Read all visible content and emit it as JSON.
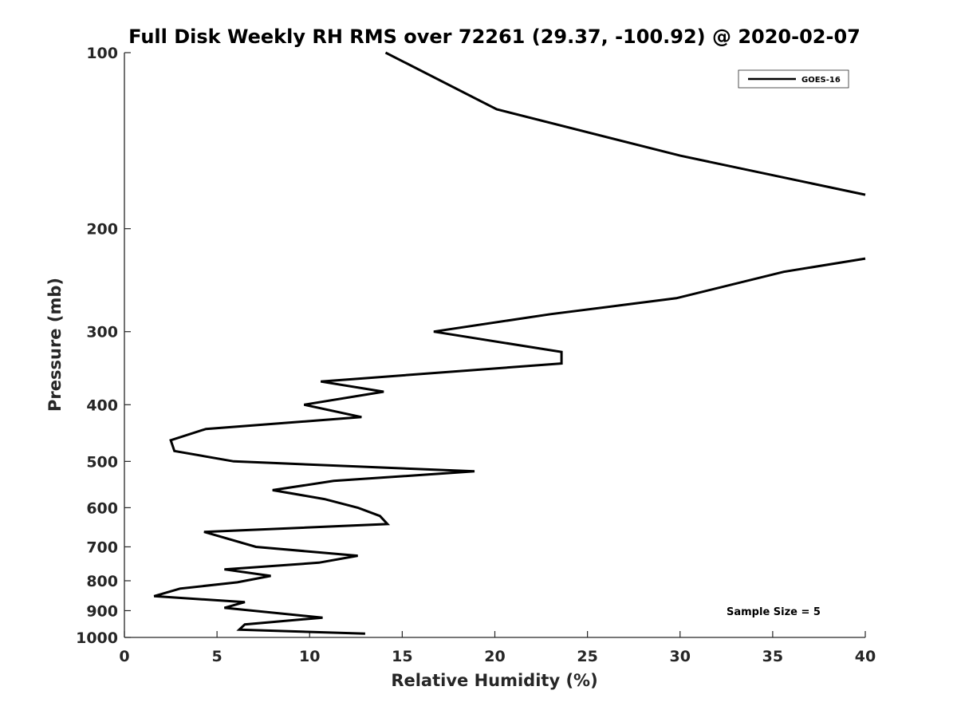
{
  "chart_data": {
    "type": "line",
    "title": "Full Disk Weekly RH RMS over 72261 (29.37, -100.92) @ 2020-02-07",
    "xlabel": "Relative Humidity (%)",
    "ylabel": "Pressure (mb)",
    "xlim": [
      0,
      40
    ],
    "ylim": [
      100,
      1000
    ],
    "y_scale": "log",
    "y_reversed": true,
    "x_ticks": [
      0,
      5,
      10,
      15,
      20,
      25,
      30,
      35,
      40
    ],
    "y_ticks": [
      100,
      200,
      300,
      400,
      500,
      600,
      700,
      800,
      900,
      1000
    ],
    "grid": false,
    "legend_position": "top-right",
    "annotation": "Sample Size = 5",
    "series": [
      {
        "name": "GOES-16",
        "color": "#000000",
        "segments": [
          [
            {
              "x": 14.1,
              "p": 100
            },
            {
              "x": 20.1,
              "p": 125
            },
            {
              "x": 30.0,
              "p": 150
            },
            {
              "x": 40.0,
              "p": 175
            }
          ],
          [
            {
              "x": 40.0,
              "p": 225
            },
            {
              "x": 35.6,
              "p": 237
            },
            {
              "x": 29.8,
              "p": 263
            },
            {
              "x": 23.0,
              "p": 280
            },
            {
              "x": 16.7,
              "p": 300
            },
            {
              "x": 23.6,
              "p": 325
            },
            {
              "x": 23.6,
              "p": 340
            },
            {
              "x": 10.6,
              "p": 365
            },
            {
              "x": 14.0,
              "p": 380
            },
            {
              "x": 9.7,
              "p": 400
            },
            {
              "x": 12.8,
              "p": 420
            },
            {
              "x": 4.4,
              "p": 440
            },
            {
              "x": 2.5,
              "p": 460
            },
            {
              "x": 2.7,
              "p": 480
            },
            {
              "x": 5.9,
              "p": 500
            },
            {
              "x": 18.9,
              "p": 520
            },
            {
              "x": 11.3,
              "p": 540
            },
            {
              "x": 8.0,
              "p": 560
            },
            {
              "x": 10.8,
              "p": 580
            },
            {
              "x": 12.6,
              "p": 600
            },
            {
              "x": 13.8,
              "p": 620
            },
            {
              "x": 14.2,
              "p": 640
            },
            {
              "x": 4.3,
              "p": 660
            },
            {
              "x": 7.1,
              "p": 700
            },
            {
              "x": 12.6,
              "p": 725
            },
            {
              "x": 10.5,
              "p": 745
            },
            {
              "x": 5.4,
              "p": 765
            },
            {
              "x": 7.9,
              "p": 785
            },
            {
              "x": 6.1,
              "p": 805
            },
            {
              "x": 3.0,
              "p": 825
            },
            {
              "x": 1.6,
              "p": 850
            },
            {
              "x": 6.5,
              "p": 870
            },
            {
              "x": 5.4,
              "p": 890
            },
            {
              "x": 10.7,
              "p": 925
            },
            {
              "x": 6.5,
              "p": 950
            },
            {
              "x": 6.2,
              "p": 970
            },
            {
              "x": 13.0,
              "p": 985
            }
          ]
        ]
      }
    ]
  }
}
